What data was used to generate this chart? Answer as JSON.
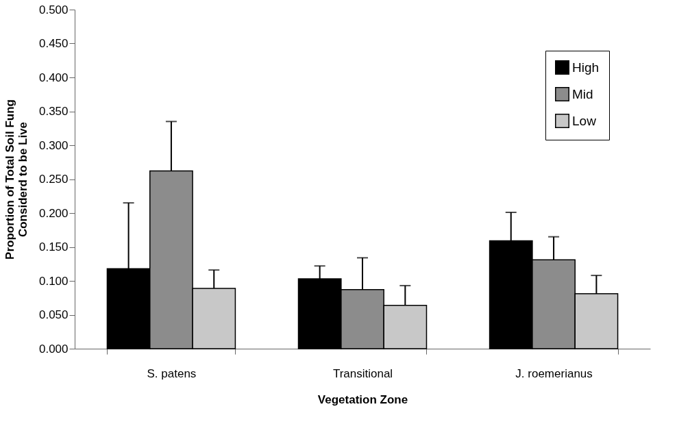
{
  "chart_data": {
    "type": "bar",
    "xlabel": "Vegetation Zone",
    "ylabel": "Proportion of Total Soil Fung\nConsiderd to be Live",
    "categories": [
      "S. patens",
      "Transitional",
      "J. roemerianus"
    ],
    "series": [
      {
        "name": "High",
        "color": "#000000",
        "values": [
          0.118,
          0.103,
          0.159
        ],
        "errors": [
          [
            0.118,
            0.215
          ],
          [
            0.103,
            0.122
          ],
          [
            0.159,
            0.201
          ]
        ]
      },
      {
        "name": "Mid",
        "color": "#8c8c8c",
        "values": [
          0.262,
          0.087,
          0.131
        ],
        "errors": [
          [
            0.262,
            0.335
          ],
          [
            0.087,
            0.134
          ],
          [
            0.131,
            0.165
          ]
        ]
      },
      {
        "name": "Low",
        "color": "#c8c8c8",
        "values": [
          0.089,
          0.064,
          0.081
        ],
        "errors": [
          [
            0.089,
            0.116
          ],
          [
            0.064,
            0.093
          ],
          [
            0.081,
            0.108
          ]
        ]
      }
    ],
    "ylim": [
      0,
      0.5
    ],
    "yticks": [
      {
        "value": 0,
        "label": "0.000"
      },
      {
        "value": 0.05,
        "label": "0.050"
      },
      {
        "value": 0.1,
        "label": "0.100"
      },
      {
        "value": 0.15,
        "label": "0.150"
      },
      {
        "value": 0.2,
        "label": "0.200"
      },
      {
        "value": 0.25,
        "label": "0.250"
      },
      {
        "value": 0.3,
        "label": "0.300"
      },
      {
        "value": 0.35,
        "label": "0.350"
      },
      {
        "value": 0.4,
        "label": "0.400"
      },
      {
        "value": 0.45,
        "label": "0.450"
      },
      {
        "value": 0.5,
        "label": "0.500"
      }
    ],
    "grid": false,
    "legend": "top right"
  }
}
